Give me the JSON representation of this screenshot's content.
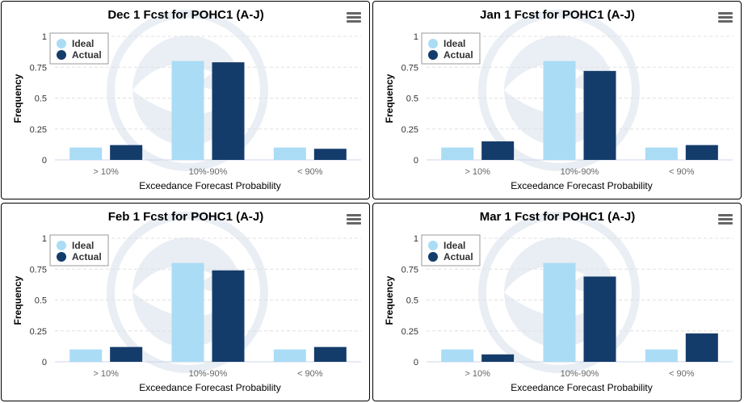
{
  "colors": {
    "ideal": "#aadcf5",
    "actual": "#143c6b",
    "grid": "#e0e0e0",
    "axis_text": "#666666"
  },
  "chart_data": [
    {
      "type": "bar",
      "title": "Dec 1 Fcst for POHC1 (A-J)",
      "categories": [
        "> 10%",
        "10%-90%",
        "< 90%"
      ],
      "series": [
        {
          "name": "Ideal",
          "values": [
            0.1,
            0.8,
            0.1
          ]
        },
        {
          "name": "Actual",
          "values": [
            0.12,
            0.79,
            0.09
          ]
        }
      ],
      "xlabel": "Exceedance Forecast Probability",
      "ylabel": "Frequency",
      "ylim": [
        0,
        1
      ],
      "yticks": [
        "0",
        "0.25",
        "0.5",
        "0.75",
        "1"
      ],
      "legend": "top-left"
    },
    {
      "type": "bar",
      "title": "Jan 1 Fcst for POHC1 (A-J)",
      "categories": [
        "> 10%",
        "10%-90%",
        "< 90%"
      ],
      "series": [
        {
          "name": "Ideal",
          "values": [
            0.1,
            0.8,
            0.1
          ]
        },
        {
          "name": "Actual",
          "values": [
            0.15,
            0.72,
            0.12
          ]
        }
      ],
      "xlabel": "Exceedance Forecast Probability",
      "ylabel": "Frequency",
      "ylim": [
        0,
        1
      ],
      "yticks": [
        "0",
        "0.25",
        "0.5",
        "0.75",
        "1"
      ],
      "legend": "top-left"
    },
    {
      "type": "bar",
      "title": "Feb 1 Fcst for POHC1 (A-J)",
      "categories": [
        "> 10%",
        "10%-90%",
        "< 90%"
      ],
      "series": [
        {
          "name": "Ideal",
          "values": [
            0.1,
            0.8,
            0.1
          ]
        },
        {
          "name": "Actual",
          "values": [
            0.12,
            0.74,
            0.12
          ]
        }
      ],
      "xlabel": "Exceedance Forecast Probability",
      "ylabel": "Frequency",
      "ylim": [
        0,
        1
      ],
      "yticks": [
        "0",
        "0.25",
        "0.5",
        "0.75",
        "1"
      ],
      "legend": "top-left"
    },
    {
      "type": "bar",
      "title": "Mar 1 Fcst for POHC1 (A-J)",
      "categories": [
        "> 10%",
        "10%-90%",
        "< 90%"
      ],
      "series": [
        {
          "name": "Ideal",
          "values": [
            0.1,
            0.8,
            0.1
          ]
        },
        {
          "name": "Actual",
          "values": [
            0.06,
            0.69,
            0.23
          ]
        }
      ],
      "xlabel": "Exceedance Forecast Probability",
      "ylabel": "Frequency",
      "ylim": [
        0,
        1
      ],
      "yticks": [
        "0",
        "0.25",
        "0.5",
        "0.75",
        "1"
      ],
      "legend": "top-left"
    }
  ]
}
